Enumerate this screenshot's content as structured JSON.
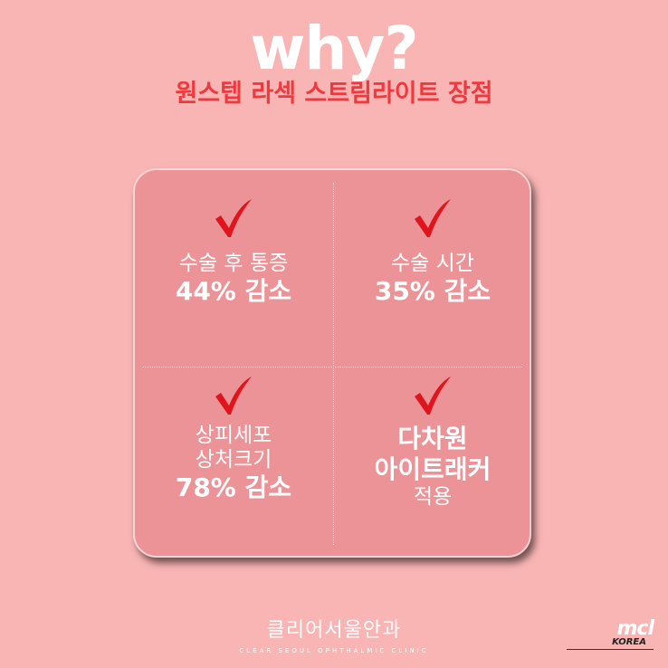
{
  "header": {
    "title": "why?",
    "subtitle": "원스텝 라섹 스트림라이트 장점"
  },
  "benefits": [
    {
      "lines": [
        "수술 후 통증"
      ],
      "strong": [
        "44% 감소"
      ],
      "after": []
    },
    {
      "lines": [
        "수술 시간"
      ],
      "strong": [
        "35% 감소"
      ],
      "after": []
    },
    {
      "lines": [
        "상피세포",
        "상처크기"
      ],
      "strong": [
        "78% 감소"
      ],
      "after": []
    },
    {
      "lines": [],
      "strong": [
        "다차원",
        "아이트래커"
      ],
      "after": [
        "적용"
      ]
    }
  ],
  "footer": {
    "clinic_name": "클리어서울안과",
    "clinic_en": "CLEAR SEOUL OPHTHALMIC CLINIC"
  },
  "watermark": {
    "mark": "mcl",
    "country": "KOREA"
  },
  "colors": {
    "background": "#f9b4b4",
    "card": "#eb9397",
    "subtitle": "#f0393f",
    "check": "#e0141c"
  },
  "icons": {
    "check": "checkmark-icon"
  }
}
